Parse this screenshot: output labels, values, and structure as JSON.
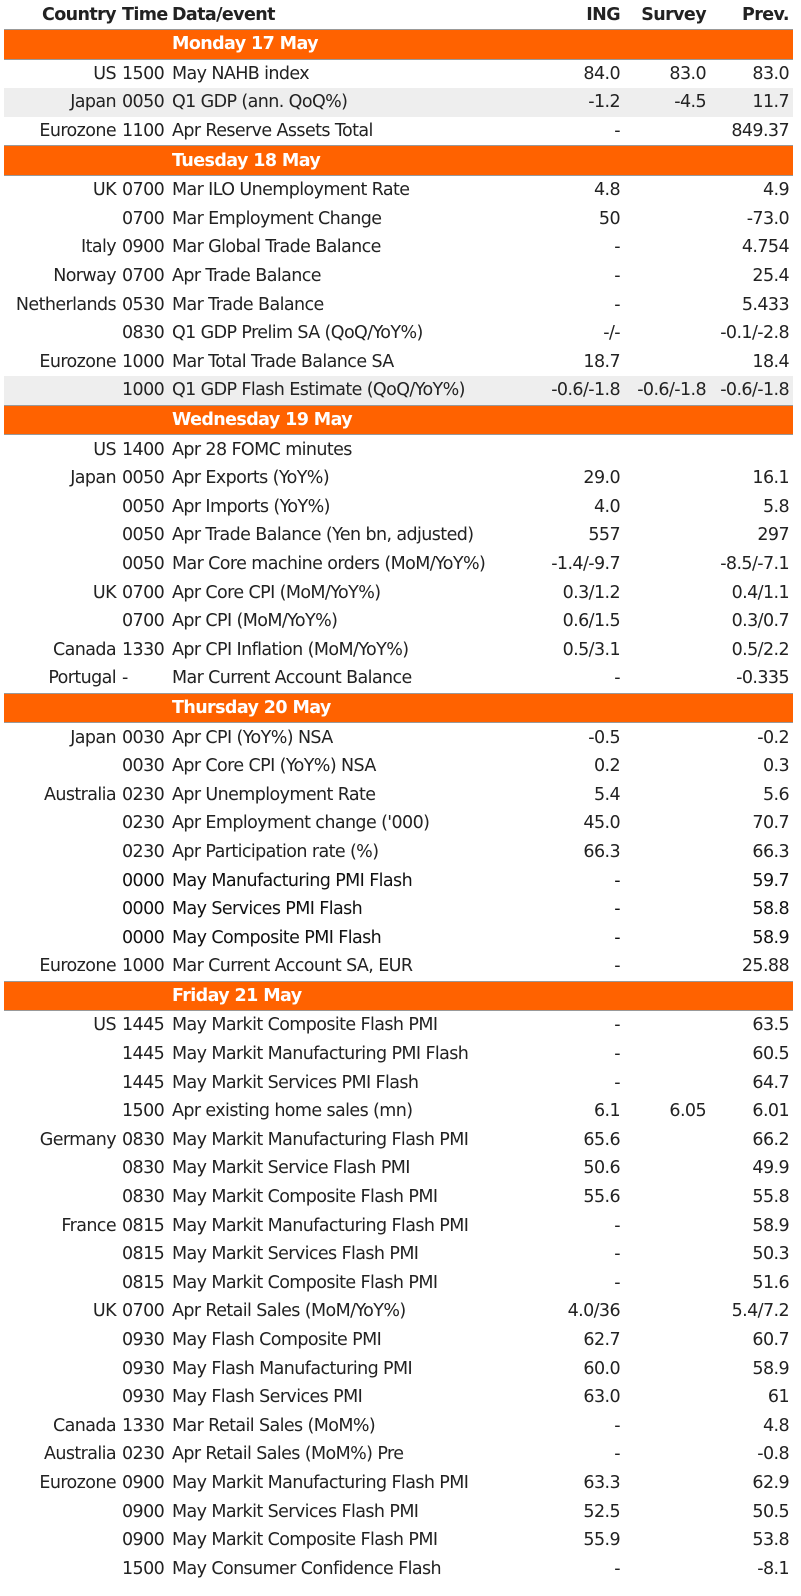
{
  "headers": {
    "country": "Country",
    "time": "Time",
    "event": "Data/event",
    "ing": "ING",
    "survey": "Survey",
    "prev": "Prev."
  },
  "days": [
    {
      "label": "Monday 17 May",
      "rows": [
        {
          "country": "US",
          "time": "1500",
          "event": "May NAHB index",
          "ing": "84.0",
          "survey": "83.0",
          "prev": "83.0"
        },
        {
          "country": "Japan",
          "time": "0050",
          "event": "Q1 GDP (ann. QoQ%)",
          "ing": "-1.2",
          "survey": "-4.5",
          "prev": "11.7",
          "shade": true
        },
        {
          "country": "Eurozone",
          "time": "1100",
          "event": "Apr Reserve Assets Total",
          "ing": "-",
          "survey": "",
          "prev": "849.37"
        }
      ]
    },
    {
      "label": "Tuesday 18 May",
      "rows": [
        {
          "country": "UK",
          "time": "0700",
          "event": "Mar ILO Unemployment Rate",
          "ing": "4.8",
          "survey": "",
          "prev": "4.9"
        },
        {
          "country": "",
          "time": "0700",
          "event": "Mar Employment Change",
          "ing": "50",
          "survey": "",
          "prev": "-73.0"
        },
        {
          "country": "Italy",
          "time": "0900",
          "event": "Mar Global Trade Balance",
          "ing": "-",
          "survey": "",
          "prev": "4.754"
        },
        {
          "country": "Norway",
          "time": "0700",
          "event": "Apr Trade Balance",
          "ing": "-",
          "survey": "",
          "prev": "25.4"
        },
        {
          "country": "Netherlands",
          "time": "0530",
          "event": "Mar Trade Balance",
          "ing": "-",
          "survey": "",
          "prev": "5.433"
        },
        {
          "country": "",
          "time": "0830",
          "event": "Q1 GDP Prelim SA (QoQ/YoY%)",
          "ing": "-/-",
          "survey": "",
          "prev": "-0.1/-2.8"
        },
        {
          "country": "Eurozone",
          "time": "1000",
          "event": "Mar Total Trade Balance SA",
          "ing": "18.7",
          "survey": "",
          "prev": "18.4"
        },
        {
          "country": "",
          "time": "1000",
          "event": "Q1 GDP Flash Estimate (QoQ/YoY%)",
          "ing": "-0.6/-1.8",
          "survey": "-0.6/-1.8",
          "prev": "-0.6/-1.8",
          "shade": true
        }
      ]
    },
    {
      "label": "Wednesday 19 May",
      "rows": [
        {
          "country": "US",
          "time": "1400",
          "event": "Apr 28 FOMC minutes",
          "ing": "",
          "survey": "",
          "prev": ""
        },
        {
          "country": "Japan",
          "time": "0050",
          "event": "Apr Exports (YoY%)",
          "ing": "29.0",
          "survey": "",
          "prev": "16.1"
        },
        {
          "country": "",
          "time": "0050",
          "event": "Apr Imports (YoY%)",
          "ing": "4.0",
          "survey": "",
          "prev": "5.8"
        },
        {
          "country": "",
          "time": "0050",
          "event": "Apr Trade Balance (Yen bn, adjusted)",
          "ing": "557",
          "survey": "",
          "prev": "297"
        },
        {
          "country": "",
          "time": "0050",
          "event": "Mar Core machine orders (MoM/YoY%)",
          "ing": "-1.4/-9.7",
          "survey": "",
          "prev": "-8.5/-7.1"
        },
        {
          "country": "UK",
          "time": "0700",
          "event": "Apr Core CPI (MoM/YoY%)",
          "ing": "0.3/1.2",
          "survey": "",
          "prev": "0.4/1.1"
        },
        {
          "country": "",
          "time": "0700",
          "event": "Apr CPI (MoM/YoY%)",
          "ing": "0.6/1.5",
          "survey": "",
          "prev": "0.3/0.7"
        },
        {
          "country": "Canada",
          "time": "1330",
          "event": "Apr CPI Inflation (MoM/YoY%)",
          "ing": "0.5/3.1",
          "survey": "",
          "prev": "0.5/2.2"
        },
        {
          "country": "Portugal",
          "time": "-",
          "event": "Mar Current Account Balance",
          "ing": "-",
          "survey": "",
          "prev": "-0.335"
        }
      ]
    },
    {
      "label": "Thursday 20 May",
      "rows": [
        {
          "country": "Japan",
          "time": "0030",
          "event": "Apr CPI (YoY%) NSA",
          "ing": "-0.5",
          "survey": "",
          "prev": "-0.2"
        },
        {
          "country": "",
          "time": "0030",
          "event": "Apr Core CPI (YoY%) NSA",
          "ing": "0.2",
          "survey": "",
          "prev": "0.3"
        },
        {
          "country": "Australia",
          "time": "0230",
          "event": "Apr Unemployment Rate",
          "ing": "5.4",
          "survey": "",
          "prev": "5.6"
        },
        {
          "country": "",
          "time": "0230",
          "event": "Apr Employment change ('000)",
          "ing": "45.0",
          "survey": "",
          "prev": "70.7"
        },
        {
          "country": "",
          "time": "0230",
          "event": "Apr Participation rate (%)",
          "ing": "66.3",
          "survey": "",
          "prev": "66.3"
        },
        {
          "country": "",
          "time": "0000",
          "event": "May Manufacturing PMI Flash",
          "ing": "-",
          "survey": "",
          "prev": "59.7",
          "dark": true
        },
        {
          "country": "",
          "time": "0000",
          "event": "May Services PMI Flash",
          "ing": "-",
          "survey": "",
          "prev": "58.8",
          "dark": true
        },
        {
          "country": "",
          "time": "0000",
          "event": "May Composite PMI Flash",
          "ing": "-",
          "survey": "",
          "prev": "58.9",
          "dark": true
        },
        {
          "country": "Eurozone",
          "time": "1000",
          "event": "Mar Current Account SA, EUR",
          "ing": "-",
          "survey": "",
          "prev": "25.88"
        }
      ]
    },
    {
      "label": "Friday 21 May",
      "rows": [
        {
          "country": "US",
          "time": "1445",
          "event": "May Markit Composite Flash PMI",
          "ing": "-",
          "survey": "",
          "prev": "63.5"
        },
        {
          "country": "",
          "time": "1445",
          "event": "May Markit Manufacturing PMI Flash",
          "ing": "-",
          "survey": "",
          "prev": "60.5"
        },
        {
          "country": "",
          "time": "1445",
          "event": "May Markit Services PMI Flash",
          "ing": "-",
          "survey": "",
          "prev": "64.7"
        },
        {
          "country": "",
          "time": "1500",
          "event": "Apr existing home sales (mn)",
          "ing": "6.1",
          "survey": "6.05",
          "prev": "6.01"
        },
        {
          "country": "Germany",
          "time": "0830",
          "event": "May Markit Manufacturing Flash PMI",
          "ing": "65.6",
          "survey": "",
          "prev": "66.2"
        },
        {
          "country": "",
          "time": "0830",
          "event": "May Markit Service Flash PMI",
          "ing": "50.6",
          "survey": "",
          "prev": "49.9"
        },
        {
          "country": "",
          "time": "0830",
          "event": "May Markit Composite Flash PMI",
          "ing": "55.6",
          "survey": "",
          "prev": "55.8"
        },
        {
          "country": "France",
          "time": "0815",
          "event": "May Markit Manufacturing Flash PMI",
          "ing": "-",
          "survey": "",
          "prev": "58.9"
        },
        {
          "country": "",
          "time": "0815",
          "event": "May Markit Services Flash PMI",
          "ing": "-",
          "survey": "",
          "prev": "50.3"
        },
        {
          "country": "",
          "time": "0815",
          "event": "May Markit Composite Flash PMI",
          "ing": "-",
          "survey": "",
          "prev": "51.6"
        },
        {
          "country": "UK",
          "time": "0700",
          "event": "Apr Retail Sales (MoM/YoY%)",
          "ing": "4.0/36",
          "survey": "",
          "prev": "5.4/7.2"
        },
        {
          "country": "",
          "time": "0930",
          "event": "May Flash Composite PMI",
          "ing": "62.7",
          "survey": "",
          "prev": "60.7"
        },
        {
          "country": "",
          "time": "0930",
          "event": "May Flash Manufacturing PMI",
          "ing": "60.0",
          "survey": "",
          "prev": "58.9"
        },
        {
          "country": "",
          "time": "0930",
          "event": "May Flash Services PMI",
          "ing": "63.0",
          "survey": "",
          "prev": "61"
        },
        {
          "country": "Canada",
          "time": "1330",
          "event": "Mar Retail Sales (MoM%)",
          "ing": "-",
          "survey": "",
          "prev": "4.8"
        },
        {
          "country": "Australia",
          "time": "0230",
          "event": "Apr Retail Sales (MoM%) Pre",
          "ing": "-",
          "survey": "",
          "prev": "-0.8"
        },
        {
          "country": "Eurozone",
          "time": "0900",
          "event": "May Markit Manufacturing Flash PMI",
          "ing": "63.3",
          "survey": "",
          "prev": "62.9"
        },
        {
          "country": "",
          "time": "0900",
          "event": "May Markit Services Flash PMI",
          "ing": "52.5",
          "survey": "",
          "prev": "50.5"
        },
        {
          "country": "",
          "time": "0900",
          "event": "May Markit Composite Flash PMI",
          "ing": "55.9",
          "survey": "",
          "prev": "53.8"
        },
        {
          "country": "",
          "time": "1500",
          "event": "May Consumer Confidence Flash",
          "ing": "-",
          "survey": "",
          "prev": "-8.1"
        }
      ]
    }
  ]
}
